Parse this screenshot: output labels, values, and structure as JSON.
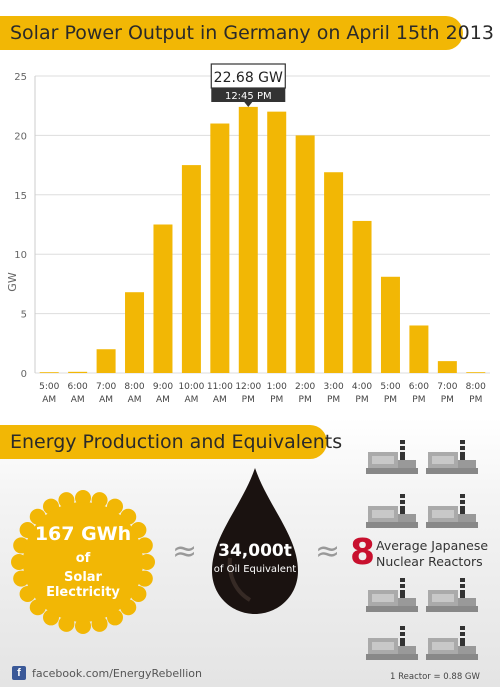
{
  "chart_title": "Solar Power Output in Germany on April 15th 2013",
  "section_title": "Energy Production and Equivalents",
  "chart_data": {
    "type": "bar",
    "ylabel": "GW",
    "ylim": [
      0,
      25
    ],
    "yticks": [
      "0",
      "5",
      "10",
      "15",
      "20",
      "25"
    ],
    "categories": [
      [
        "5:00",
        "AM"
      ],
      [
        "6:00",
        "AM"
      ],
      [
        "7:00",
        "AM"
      ],
      [
        "8:00",
        "AM"
      ],
      [
        "9:00",
        "AM"
      ],
      [
        "10:00",
        "AM"
      ],
      [
        "11:00",
        "AM"
      ],
      [
        "12:00",
        "PM"
      ],
      [
        "1:00",
        "PM"
      ],
      [
        "2:00",
        "PM"
      ],
      [
        "3:00",
        "PM"
      ],
      [
        "4:00",
        "PM"
      ],
      [
        "5:00",
        "PM"
      ],
      [
        "6:00",
        "PM"
      ],
      [
        "7:00",
        "PM"
      ],
      [
        "8:00",
        "PM"
      ]
    ],
    "values": [
      0,
      0.1,
      2.0,
      6.8,
      12.5,
      17.5,
      21.0,
      22.4,
      22.0,
      20.0,
      16.9,
      12.8,
      8.1,
      4.0,
      1.0,
      0.05
    ],
    "bar_color": "#f2b705",
    "grid": true,
    "annotation": {
      "value": "22.68 GW",
      "time": "12:45 PM",
      "at_category": 7
    }
  },
  "equivalents": {
    "solar_value": "167 GWh",
    "solar_of": "of",
    "solar_label": "Solar Electricity",
    "approx_symbol": "≈",
    "oil_value": "34,000t",
    "oil_label": "of Oil Equivalent",
    "reactor_count": "8",
    "reactor_label_line1": "Average Japanese",
    "reactor_label_line2": "Nuclear Reactors",
    "reactor_note": "1 Reactor = 0.88 GW",
    "sun_color": "#f2b705",
    "oil_color": "#1a1210",
    "reactor_color": "#c8102e"
  },
  "footer": {
    "fb_letter": "f",
    "text": "facebook.com/EnergyRebellion"
  }
}
